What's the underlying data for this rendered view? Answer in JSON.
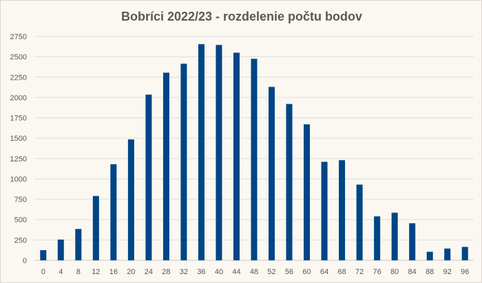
{
  "chart_data": {
    "type": "bar",
    "title": "Bobríci 2022/23 - rozdelenie počtu bodov",
    "xlabel": "",
    "ylabel": "",
    "ylim": [
      0,
      2750
    ],
    "yticks": [
      0,
      250,
      500,
      750,
      1000,
      1250,
      1500,
      1750,
      2000,
      2250,
      2500,
      2750
    ],
    "grid": "horizontal",
    "legend": "none",
    "bar_color": "#004586",
    "categories": [
      "0",
      "4",
      "8",
      "12",
      "16",
      "20",
      "24",
      "28",
      "32",
      "36",
      "40",
      "44",
      "48",
      "52",
      "56",
      "60",
      "64",
      "68",
      "72",
      "76",
      "80",
      "84",
      "88",
      "92",
      "96"
    ],
    "values": [
      125,
      255,
      385,
      790,
      1180,
      1485,
      2035,
      2305,
      2415,
      2655,
      2645,
      2550,
      2475,
      2130,
      1920,
      1670,
      1210,
      1230,
      930,
      540,
      585,
      455,
      105,
      145,
      165
    ]
  }
}
